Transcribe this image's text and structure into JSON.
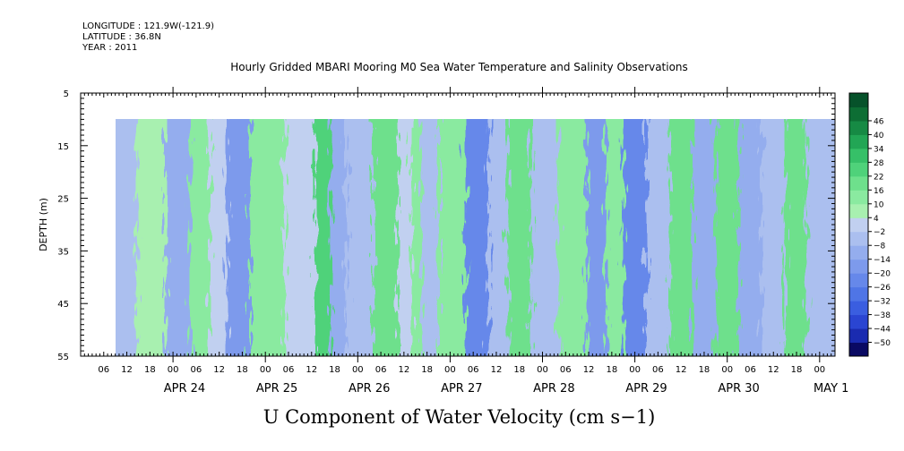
{
  "header": {
    "longitude": "LONGITUDE : 121.9W(-121.9)",
    "latitude": "LATITUDE : 36.8N",
    "year": "YEAR : 2011"
  },
  "chart_data": {
    "type": "heatmap",
    "title": "Hourly Gridded MBARI Mooring M0 Sea Water Temperature and Salinity Observations",
    "xlabel": "U Component of Water Velocity (cm s−1)",
    "ylabel": "DEPTH (m)",
    "ylim": [
      5,
      55
    ],
    "y_ticks": [
      5,
      15,
      25,
      35,
      45,
      55
    ],
    "x_range_hours": [
      "APR 23 00",
      "MAY 1 04"
    ],
    "x_hour_ticks": [
      "06",
      "12",
      "18",
      "00",
      "06",
      "12",
      "18",
      "00",
      "06",
      "12",
      "18",
      "00",
      "06",
      "12",
      "18",
      "00",
      "06",
      "12",
      "18",
      "00",
      "06",
      "12",
      "18",
      "00",
      "06",
      "12",
      "18",
      "00",
      "06",
      "12",
      "18",
      "00"
    ],
    "x_day_labels": [
      "APR 24",
      "APR 25",
      "APR 26",
      "APR 27",
      "APR 28",
      "APR 29",
      "APR 30",
      "MAY  1"
    ],
    "data_depth_range": [
      10,
      55
    ],
    "colorbar": {
      "levels": [
        -50,
        -44,
        -38,
        -32,
        -26,
        -20,
        -14,
        -8,
        -2,
        4,
        10,
        16,
        22,
        28,
        34,
        40,
        46
      ],
      "colors": [
        "#0a0a63",
        "#1a2bb0",
        "#2a45d2",
        "#3a5ee0",
        "#4f75e6",
        "#6688ea",
        "#7d9aec",
        "#94adee",
        "#abbfef",
        "#c1d0f0",
        "#a8f0b0",
        "#8aeaa0",
        "#6ee08c",
        "#4fd27a",
        "#36c068",
        "#22a655",
        "#168a44",
        "#0d6e34",
        "#06522a"
      ]
    },
    "band_centers_hours": [
      0,
      11,
      18,
      26,
      31,
      36,
      40,
      48,
      58,
      64,
      66,
      72,
      80,
      85,
      87,
      90,
      96,
      104,
      108,
      114,
      120,
      128,
      135,
      138,
      144,
      150,
      156,
      162,
      168,
      174,
      180,
      186,
      191
    ],
    "band_values_cm_s": [
      -8,
      -6,
      4,
      -14,
      12,
      -2,
      -20,
      10,
      -2,
      22,
      -14,
      -6,
      16,
      -2,
      10,
      -8,
      14,
      -26,
      -4,
      16,
      -8,
      14,
      -20,
      12,
      -26,
      -8,
      20,
      -10,
      16,
      -14,
      -4,
      20,
      -4
    ]
  }
}
